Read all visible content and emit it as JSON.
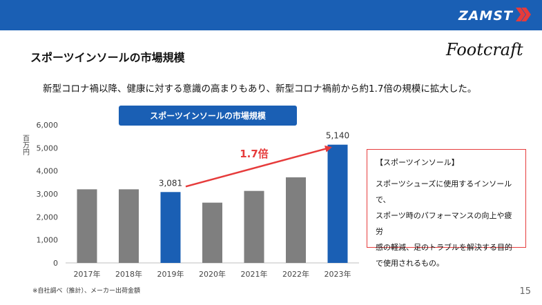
{
  "header": {
    "brand": "ZAMST",
    "colors": {
      "bar": "#1a5fb4",
      "accent": "#e63b3b"
    }
  },
  "title": "スポーツインソールの市場規模",
  "sub_logo": "Footcraft",
  "subtitle": "新型コロナ禍以降、健康に対する意識の高まりもあり、新型コロナ禍前から約1.7倍の規模に拡大した。",
  "chart_data": {
    "type": "bar",
    "title": "スポーツインソールの市場規模",
    "ylabel": "百万円",
    "xlabel": "",
    "categories": [
      "2017年",
      "2018年",
      "2019年",
      "2020年",
      "2021年",
      "2022年",
      "2023年"
    ],
    "values": [
      3200,
      3200,
      3081,
      2620,
      3130,
      3720,
      5140
    ],
    "highlighted": [
      "2019年",
      "2023年"
    ],
    "data_labels": {
      "2019年": "3,081",
      "2023年": "5,140"
    },
    "ylim": [
      0,
      6000
    ],
    "yticks": [
      0,
      1000,
      2000,
      3000,
      4000,
      5000,
      6000
    ],
    "ytick_labels": [
      "0",
      "1,000",
      "2,000",
      "3,000",
      "4,000",
      "5,000",
      "6,000"
    ],
    "annotation": {
      "text": "1.7倍",
      "from": "2019年",
      "to": "2023年"
    },
    "grid": false,
    "colors": {
      "default": "#7f7f7f",
      "highlight": "#1a5fb4",
      "arrow": "#e63b3b"
    }
  },
  "info_box": {
    "title": "【スポーツインソール】",
    "lines": [
      "スポーツシューズに使用するインソールで、",
      "スポーツ時のパフォーマンスの向上や疲労",
      "感の軽減、足のトラブルを解決する目的",
      "で使用されるもの。"
    ]
  },
  "footnote": "※自社調べ（推計）、メーカー出荷金額",
  "page_number": "15"
}
